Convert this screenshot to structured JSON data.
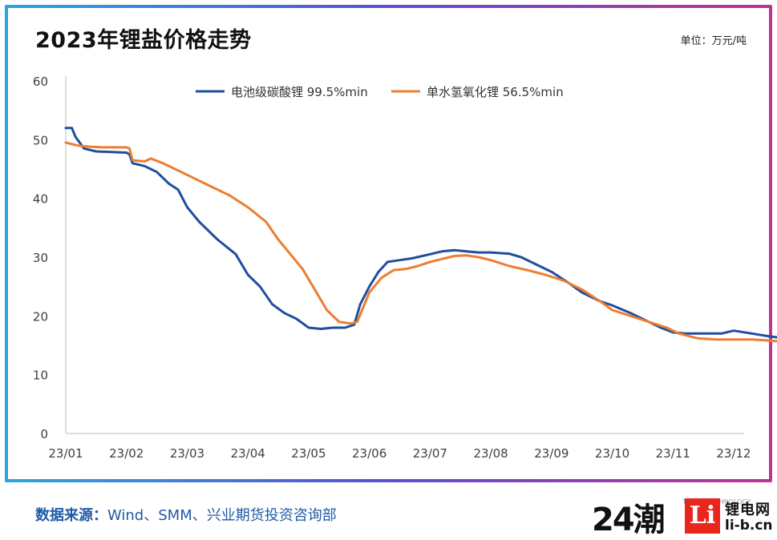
{
  "header": {
    "title": "2023年锂盐价格走势",
    "unit": "单位：万元/吨"
  },
  "footer": {
    "source_label": "数据来源：",
    "source_text": "Wind、SMM、兴业期货投资咨询部",
    "logo_number": "24",
    "logo_char": "潮",
    "logo_trend": "TREND TECHNOLOGY",
    "logo_box": "Li",
    "logo_cn": "锂电网",
    "logo_url": "li-b.cn"
  },
  "colors": {
    "series1": "#1f4e9e",
    "series2": "#ed7d31",
    "axis": "#bfbfbf",
    "text": "#404040"
  },
  "chart_data": {
    "type": "line",
    "title": "2023年锂盐价格走势",
    "unit": "单位：万元/吨",
    "ylim": [
      0,
      60
    ],
    "yticks": [
      0,
      10,
      20,
      30,
      40,
      50,
      60
    ],
    "xticks": [
      "23/01",
      "23/02",
      "23/03",
      "23/04",
      "23/05",
      "23/06",
      "23/07",
      "23/08",
      "23/09",
      "23/10",
      "23/11",
      "23/12"
    ],
    "grid": false,
    "legend_position": "top",
    "series": [
      {
        "name": "电池级碳酸锂 99.5%min",
        "color": "#1f4e9e",
        "points": [
          [
            0,
            52
          ],
          [
            0.1,
            52
          ],
          [
            0.16,
            50.5
          ],
          [
            0.3,
            48.5
          ],
          [
            0.5,
            48
          ],
          [
            1.0,
            47.8
          ],
          [
            1.05,
            47.5
          ],
          [
            1.1,
            46
          ],
          [
            1.3,
            45.5
          ],
          [
            1.5,
            44.5
          ],
          [
            1.7,
            42.5
          ],
          [
            1.85,
            41.5
          ],
          [
            2.0,
            38.5
          ],
          [
            2.2,
            36
          ],
          [
            2.5,
            33
          ],
          [
            2.8,
            30.5
          ],
          [
            3.0,
            27
          ],
          [
            3.2,
            25
          ],
          [
            3.4,
            22
          ],
          [
            3.6,
            20.5
          ],
          [
            3.8,
            19.5
          ],
          [
            4.0,
            18
          ],
          [
            4.2,
            17.8
          ],
          [
            4.4,
            18
          ],
          [
            4.6,
            18
          ],
          [
            4.75,
            18.5
          ],
          [
            4.85,
            22
          ],
          [
            5.0,
            25
          ],
          [
            5.15,
            27.5
          ],
          [
            5.3,
            29.2
          ],
          [
            5.5,
            29.5
          ],
          [
            5.7,
            29.8
          ],
          [
            6.0,
            30.5
          ],
          [
            6.2,
            31
          ],
          [
            6.4,
            31.2
          ],
          [
            6.6,
            31
          ],
          [
            6.8,
            30.8
          ],
          [
            7.0,
            30.8
          ],
          [
            7.3,
            30.6
          ],
          [
            7.5,
            30
          ],
          [
            7.8,
            28.5
          ],
          [
            8.0,
            27.5
          ],
          [
            8.3,
            25.5
          ],
          [
            8.5,
            24
          ],
          [
            8.8,
            22.5
          ],
          [
            9.0,
            21.8
          ],
          [
            9.3,
            20.5
          ],
          [
            9.6,
            19
          ],
          [
            9.8,
            18
          ],
          [
            10.0,
            17.2
          ],
          [
            10.2,
            17
          ],
          [
            10.5,
            17
          ],
          [
            10.8,
            17
          ],
          [
            11.0,
            17.5
          ],
          [
            11.3,
            17
          ],
          [
            11.6,
            16.5
          ],
          [
            12.0,
            16
          ],
          [
            12.3,
            15
          ],
          [
            12.6,
            14.5
          ],
          [
            12.9,
            13.8
          ],
          [
            13.2,
            13
          ],
          [
            13.45,
            12.6
          ]
        ]
      },
      {
        "name": "单水氢氧化锂 56.5%min",
        "color": "#ed7d31",
        "points": [
          [
            0,
            49.5
          ],
          [
            0.2,
            49
          ],
          [
            0.4,
            48.8
          ],
          [
            0.6,
            48.7
          ],
          [
            0.8,
            48.7
          ],
          [
            1.0,
            48.7
          ],
          [
            1.05,
            48.5
          ],
          [
            1.1,
            46.5
          ],
          [
            1.3,
            46.3
          ],
          [
            1.4,
            46.8
          ],
          [
            1.6,
            46
          ],
          [
            1.8,
            45
          ],
          [
            2.0,
            44
          ],
          [
            2.2,
            43
          ],
          [
            2.4,
            42
          ],
          [
            2.7,
            40.5
          ],
          [
            3.0,
            38.5
          ],
          [
            3.3,
            36
          ],
          [
            3.5,
            33
          ],
          [
            3.7,
            30.5
          ],
          [
            3.9,
            28
          ],
          [
            4.1,
            24.5
          ],
          [
            4.3,
            21
          ],
          [
            4.5,
            19
          ],
          [
            4.7,
            18.7
          ],
          [
            4.8,
            19
          ],
          [
            4.9,
            21.5
          ],
          [
            5.0,
            24
          ],
          [
            5.2,
            26.5
          ],
          [
            5.4,
            27.8
          ],
          [
            5.6,
            28
          ],
          [
            5.8,
            28.5
          ],
          [
            6.0,
            29.2
          ],
          [
            6.2,
            29.7
          ],
          [
            6.4,
            30.2
          ],
          [
            6.6,
            30.3
          ],
          [
            6.8,
            30
          ],
          [
            7.0,
            29.5
          ],
          [
            7.3,
            28.5
          ],
          [
            7.6,
            27.8
          ],
          [
            7.9,
            27
          ],
          [
            8.2,
            26
          ],
          [
            8.5,
            24.5
          ],
          [
            8.8,
            22.5
          ],
          [
            9.0,
            21
          ],
          [
            9.3,
            20
          ],
          [
            9.6,
            19
          ],
          [
            9.9,
            18
          ],
          [
            10.1,
            17
          ],
          [
            10.4,
            16.2
          ],
          [
            10.7,
            16
          ],
          [
            11.0,
            16
          ],
          [
            11.3,
            16
          ],
          [
            11.6,
            15.8
          ],
          [
            11.9,
            15.5
          ],
          [
            12.2,
            15
          ],
          [
            12.5,
            14.5
          ],
          [
            12.8,
            14
          ],
          [
            13.1,
            13
          ],
          [
            13.45,
            11.5
          ]
        ]
      }
    ]
  }
}
